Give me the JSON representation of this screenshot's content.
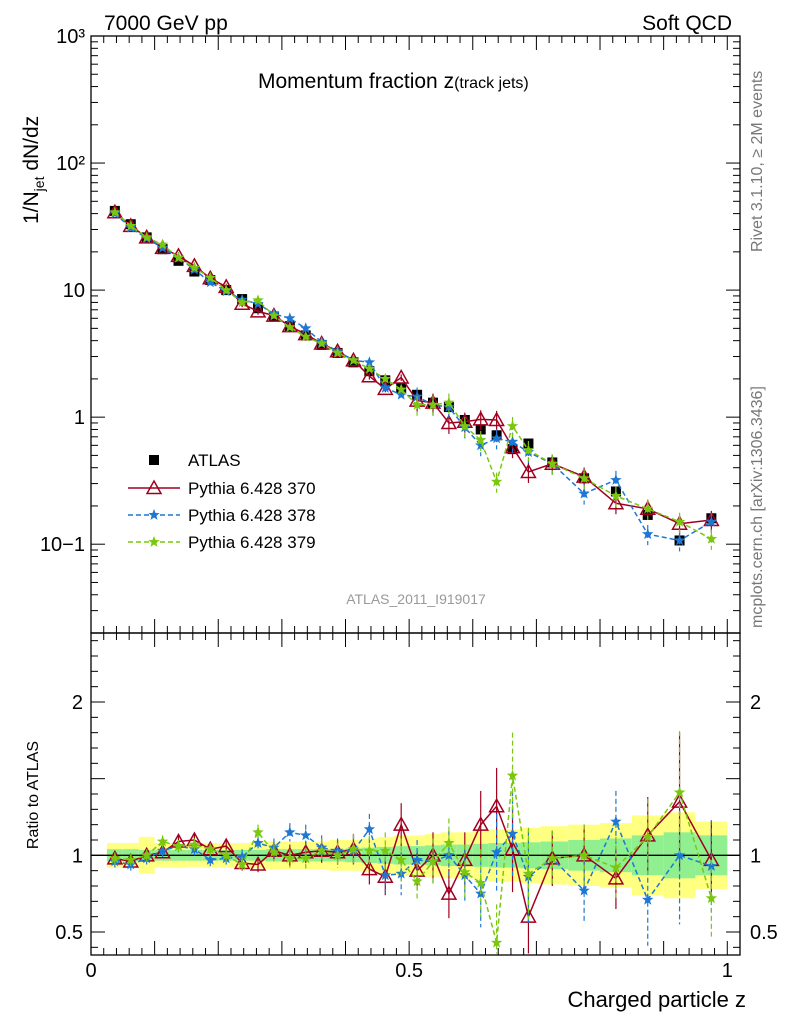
{
  "header": {
    "left": "7000 GeV pp",
    "right": "Soft QCD"
  },
  "side_text": {
    "rivet": "Rivet 3.1.10, ≥ 2M events",
    "source": "mcplots.cern.ch [arXiv:1306.3436]"
  },
  "chart_data": [
    {
      "type": "line",
      "panel": "main",
      "title_main": "Momentum fraction z",
      "title_sub": "(track jets)",
      "ylabel": "1/N_jet dN/dz",
      "ylabel_parts": {
        "a": "1/N",
        "sub": "jet",
        "b": " dN/dz"
      },
      "yscale": "log",
      "ylim": [
        0.02,
        1000
      ],
      "xlim": [
        0,
        1.02
      ],
      "y_ticklabels": [
        "10−1",
        "1",
        "10",
        "10²",
        "10³"
      ],
      "watermark": "ATLAS_2011_I919017",
      "legend": {
        "placement": "middle-left",
        "entries": [
          "ATLAS",
          "Pythia 6.428 370",
          "Pythia 6.428 378",
          "Pythia 6.428 379"
        ]
      },
      "x": [
        0.0375,
        0.0625,
        0.0875,
        0.1125,
        0.1375,
        0.1625,
        0.1875,
        0.2125,
        0.2375,
        0.2625,
        0.2875,
        0.3125,
        0.3375,
        0.3625,
        0.3875,
        0.4125,
        0.4375,
        0.4625,
        0.4875,
        0.5125,
        0.5375,
        0.5625,
        0.5875,
        0.6125,
        0.6375,
        0.6625,
        0.6875,
        0.725,
        0.775,
        0.825,
        0.875,
        0.925,
        0.975
      ],
      "series": [
        {
          "name": "ATLAS",
          "color": "#000000",
          "marker": "square",
          "values": [
            42,
            33,
            26,
            21,
            17,
            14,
            12,
            10,
            8.5,
            7.2,
            6.2,
            5.2,
            4.4,
            3.7,
            3.2,
            2.7,
            2.3,
            1.95,
            1.7,
            1.5,
            1.3,
            1.2,
            0.95,
            0.8,
            0.72,
            0.56,
            0.62,
            0.44,
            0.33,
            0.26,
            0.17,
            0.107,
            0.16
          ]
        },
        {
          "name": "Pythia 6.428 370",
          "color": "#a00020",
          "marker": "triangle",
          "dash": "",
          "values": [
            41,
            32,
            26,
            21.5,
            18.6,
            15.5,
            12.4,
            10.6,
            7.8,
            6.8,
            6.3,
            5.2,
            4.5,
            3.8,
            3.3,
            2.8,
            2.1,
            1.67,
            2.05,
            1.35,
            1.3,
            0.9,
            0.92,
            0.96,
            0.95,
            0.58,
            0.37,
            0.43,
            0.34,
            0.21,
            0.19,
            0.145,
            0.155
          ]
        },
        {
          "name": "Pythia 6.428 378",
          "color": "#1f77d4",
          "marker": "star",
          "dash": "5,3",
          "values": [
            40,
            31,
            25.5,
            21.5,
            18,
            14.5,
            11.5,
            9.8,
            8.4,
            7.8,
            6.5,
            6.0,
            5.0,
            3.9,
            3.3,
            2.8,
            2.7,
            1.7,
            1.5,
            1.45,
            1.25,
            1.2,
            0.83,
            0.6,
            0.68,
            0.64,
            0.53,
            0.43,
            0.25,
            0.32,
            0.12,
            0.107,
            0.15
          ]
        },
        {
          "name": "Pythia 6.428 379",
          "color": "#7ac70f",
          "marker": "star",
          "dash": "5,3",
          "values": [
            41,
            32,
            26,
            22.8,
            18,
            15,
            12.5,
            10,
            8.0,
            8.3,
            6.3,
            5.1,
            4.3,
            3.8,
            3.2,
            2.8,
            2.4,
            2.0,
            1.65,
            1.25,
            1.25,
            1.3,
            0.85,
            0.66,
            0.31,
            0.85,
            0.55,
            0.43,
            0.33,
            0.24,
            0.19,
            0.15,
            0.11
          ]
        }
      ]
    },
    {
      "type": "line",
      "panel": "ratio",
      "ylabel": "Ratio to ATLAS",
      "xlabel": "Charged particle z",
      "ylim": [
        0.35,
        2.45
      ],
      "xlim": [
        0,
        1.02
      ],
      "x_ticklabels": [
        "0",
        "0.5",
        "1"
      ],
      "y_ticklabels": [
        "0.5",
        "1",
        "2"
      ],
      "band_inner_halfwidth": [
        0.04,
        0.04,
        0.035,
        0.035,
        0.035,
        0.035,
        0.035,
        0.035,
        0.035,
        0.035,
        0.04,
        0.04,
        0.04,
        0.04,
        0.04,
        0.045,
        0.05,
        0.055,
        0.06,
        0.06,
        0.065,
        0.07,
        0.07,
        0.075,
        0.08,
        0.08,
        0.085,
        0.09,
        0.1,
        0.11,
        0.13,
        0.15,
        0.13
      ],
      "band_outer_halfwidth": [
        0.08,
        0.08,
        0.12,
        0.08,
        0.08,
        0.075,
        0.08,
        0.08,
        0.08,
        0.085,
        0.09,
        0.09,
        0.09,
        0.09,
        0.1,
        0.1,
        0.11,
        0.12,
        0.13,
        0.13,
        0.14,
        0.15,
        0.15,
        0.16,
        0.17,
        0.17,
        0.18,
        0.19,
        0.2,
        0.21,
        0.26,
        0.28,
        0.22
      ],
      "series": [
        {
          "name": "Pythia 6.428 370",
          "color": "#a00020",
          "values": [
            0.98,
            0.96,
            1.0,
            1.02,
            1.09,
            1.1,
            1.04,
            1.06,
            0.95,
            0.94,
            1.03,
            1.0,
            1.02,
            1.03,
            1.02,
            1.04,
            0.91,
            0.86,
            1.2,
            0.9,
            1.0,
            0.75,
            0.97,
            1.2,
            1.32,
            1.04,
            0.6,
            0.98,
            1.0,
            0.85,
            1.13,
            1.35,
            0.97
          ],
          "err": [
            0.04,
            0.04,
            0.04,
            0.04,
            0.04,
            0.04,
            0.04,
            0.04,
            0.05,
            0.05,
            0.06,
            0.07,
            0.07,
            0.08,
            0.08,
            0.1,
            0.1,
            0.12,
            0.14,
            0.13,
            0.15,
            0.16,
            0.18,
            0.22,
            0.25,
            0.28,
            0.3,
            0.18,
            0.2,
            0.2,
            0.25,
            0.45,
            0.25
          ]
        },
        {
          "name": "Pythia 6.428 378",
          "color": "#1f77d4",
          "values": [
            0.96,
            0.94,
            0.98,
            1.03,
            1.06,
            1.04,
            0.97,
            0.98,
            0.99,
            1.08,
            1.05,
            1.15,
            1.13,
            1.05,
            1.03,
            1.03,
            1.17,
            0.87,
            0.88,
            0.97,
            0.96,
            1.0,
            0.87,
            0.75,
            1.02,
            1.14,
            0.86,
            0.98,
            0.77,
            1.22,
            0.71,
            1.0,
            0.93
          ],
          "err": [
            0.04,
            0.04,
            0.04,
            0.04,
            0.04,
            0.04,
            0.04,
            0.04,
            0.05,
            0.05,
            0.06,
            0.06,
            0.07,
            0.08,
            0.08,
            0.1,
            0.1,
            0.12,
            0.14,
            0.13,
            0.15,
            0.16,
            0.18,
            0.22,
            0.25,
            0.28,
            0.3,
            0.18,
            0.2,
            0.2,
            0.3,
            0.45,
            0.3
          ]
        },
        {
          "name": "Pythia 6.428 379",
          "color": "#7ac70f",
          "values": [
            0.98,
            0.97,
            1.0,
            1.09,
            1.06,
            1.07,
            1.04,
            1.0,
            0.94,
            1.15,
            1.02,
            0.98,
            0.98,
            1.03,
            1.0,
            1.04,
            1.03,
            1.03,
            0.97,
            0.83,
            0.96,
            1.08,
            0.89,
            0.82,
            0.43,
            1.52,
            0.88,
            0.98,
            1.0,
            0.92,
            1.12,
            1.41,
            0.72
          ],
          "err": [
            0.04,
            0.04,
            0.04,
            0.04,
            0.04,
            0.04,
            0.04,
            0.04,
            0.05,
            0.05,
            0.06,
            0.06,
            0.07,
            0.08,
            0.08,
            0.1,
            0.1,
            0.12,
            0.14,
            0.13,
            0.15,
            0.16,
            0.18,
            0.22,
            0.25,
            0.28,
            0.3,
            0.18,
            0.2,
            0.2,
            0.25,
            0.4,
            0.25
          ]
        }
      ]
    }
  ]
}
